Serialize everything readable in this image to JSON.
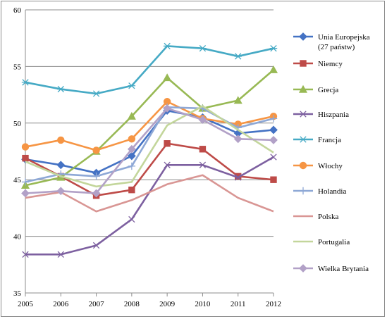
{
  "chart_data": {
    "type": "line",
    "title": "",
    "xlabel": "",
    "ylabel": "",
    "x": [
      "2005",
      "2006",
      "2007",
      "2008",
      "2009",
      "2010",
      "2011",
      "2012"
    ],
    "ylim": [
      35,
      60
    ],
    "yticks": [
      "35",
      "40",
      "45",
      "50",
      "55",
      "60"
    ],
    "grid": "horizontal",
    "legend_position": "right",
    "series": [
      {
        "name": "Unia Europejska",
        "name2": "(27 państw)",
        "color": "#4472C4",
        "marker": "diamond",
        "values": [
          46.8,
          46.3,
          45.6,
          47.1,
          51.1,
          50.5,
          49.1,
          49.4
        ]
      },
      {
        "name": "Niemcy",
        "color": "#BE4B48",
        "marker": "square",
        "values": [
          46.9,
          45.3,
          43.6,
          44.1,
          48.2,
          47.7,
          45.3,
          45.0
        ]
      },
      {
        "name": "Grecja",
        "color": "#98B954",
        "marker": "triangle",
        "values": [
          44.5,
          45.2,
          47.5,
          50.6,
          54.0,
          51.3,
          52.0,
          54.7
        ]
      },
      {
        "name": "Hiszpania",
        "color": "#7D60A0",
        "marker": "x",
        "values": [
          38.4,
          38.4,
          39.2,
          41.5,
          46.3,
          46.3,
          45.2,
          47.0
        ]
      },
      {
        "name": "Francja",
        "color": "#46AAC5",
        "marker": "star",
        "values": [
          53.6,
          53.0,
          52.6,
          53.3,
          56.8,
          56.6,
          55.9,
          56.6
        ]
      },
      {
        "name": "Włochy",
        "color": "#F69544",
        "marker": "circle",
        "values": [
          47.9,
          48.5,
          47.6,
          48.6,
          51.9,
          50.4,
          49.9,
          50.6
        ]
      },
      {
        "name": "Holandia",
        "color": "#8EA8D6",
        "marker": "plus",
        "values": [
          44.8,
          45.5,
          45.3,
          46.2,
          51.4,
          51.3,
          49.6,
          50.4
        ]
      },
      {
        "name": "Polska",
        "color": "#D99694",
        "marker": "none",
        "values": [
          43.4,
          43.9,
          42.2,
          43.2,
          44.6,
          45.4,
          43.4,
          42.2
        ]
      },
      {
        "name": "Portugalia",
        "color": "#C3D69B",
        "marker": "none",
        "values": [
          46.6,
          45.3,
          44.4,
          44.8,
          49.8,
          51.5,
          49.4,
          47.4
        ]
      },
      {
        "name": "Wielka Brytania",
        "color": "#B2A1C7",
        "marker": "diamond",
        "values": [
          43.8,
          44.0,
          43.8,
          47.7,
          51.3,
          50.3,
          48.6,
          48.5
        ]
      }
    ]
  }
}
